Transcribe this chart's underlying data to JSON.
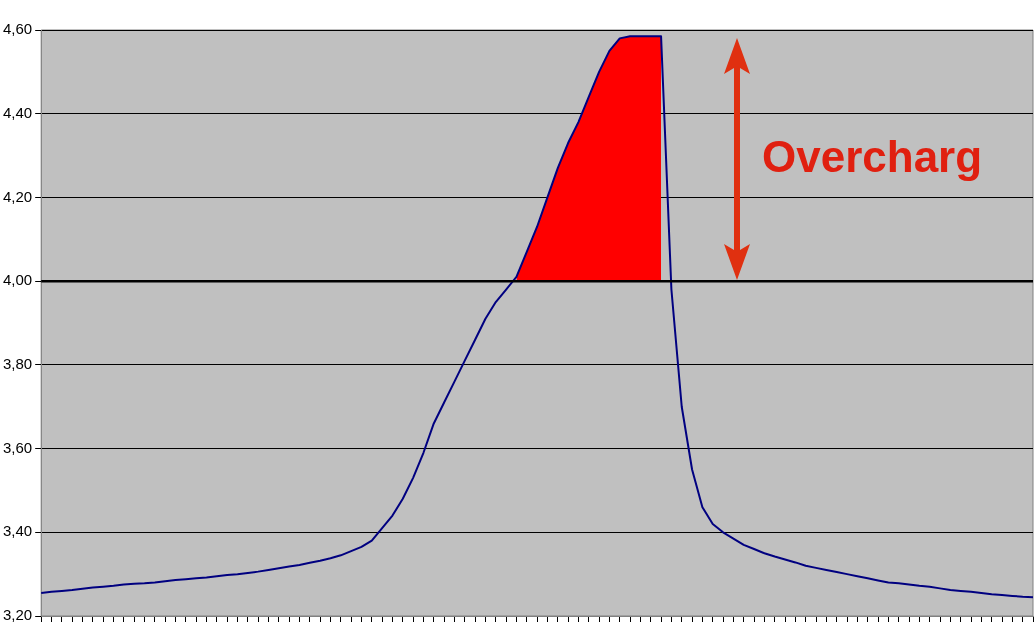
{
  "chart_data": {
    "type": "line",
    "categories": [
      null,
      null,
      null,
      null,
      null,
      null,
      null,
      null,
      null,
      null,
      null,
      null,
      null,
      null,
      null,
      null,
      null,
      null,
      null,
      null,
      null,
      null,
      null,
      null,
      null,
      null,
      null,
      null,
      null,
      null,
      null,
      null,
      null,
      null,
      null,
      null,
      null,
      null,
      null,
      null,
      null,
      null,
      null,
      null,
      null,
      null,
      null,
      null,
      null,
      null,
      null,
      null,
      null,
      null,
      null,
      null,
      null,
      null,
      null,
      null,
      null,
      null,
      null,
      null,
      null,
      null,
      null,
      null,
      null,
      null,
      null,
      null,
      null,
      null,
      null,
      null,
      null,
      null,
      null,
      null,
      null,
      null,
      null,
      null,
      null,
      null,
      null,
      null,
      null,
      null,
      null,
      null,
      null,
      null,
      null,
      null,
      null
    ],
    "series": [
      {
        "type": "line",
        "color": "#000080",
        "values": [
          3.255,
          3.258,
          3.26,
          3.262,
          3.265,
          3.268,
          3.27,
          3.272,
          3.275,
          3.277,
          3.278,
          3.28,
          3.283,
          3.286,
          3.288,
          3.29,
          3.292,
          3.295,
          3.298,
          3.3,
          3.303,
          3.306,
          3.31,
          3.314,
          3.318,
          3.322,
          3.327,
          3.332,
          3.338,
          3.345,
          3.355,
          3.365,
          3.38,
          3.41,
          3.44,
          3.48,
          3.53,
          3.59,
          3.66,
          3.71,
          3.76,
          3.81,
          3.86,
          3.91,
          3.95,
          3.98,
          4.01,
          4.07,
          4.13,
          4.2,
          4.27,
          4.33,
          4.38,
          4.44,
          4.5,
          4.55,
          4.58,
          4.585,
          4.585,
          4.585,
          4.585,
          3.98,
          3.7,
          3.55,
          3.46,
          3.42,
          3.4,
          3.385,
          3.37,
          3.36,
          3.35,
          3.342,
          3.335,
          3.328,
          3.32,
          3.315,
          3.31,
          3.305,
          3.3,
          3.295,
          3.29,
          3.285,
          3.28,
          3.278,
          3.275,
          3.272,
          3.27,
          3.266,
          3.262,
          3.26,
          3.258,
          3.255,
          3.252,
          3.25,
          3.248,
          3.246,
          3.245
        ]
      },
      {
        "type": "area",
        "color": "#ff0000",
        "values": [
          null,
          null,
          null,
          null,
          null,
          null,
          null,
          null,
          null,
          null,
          null,
          null,
          null,
          null,
          null,
          null,
          null,
          null,
          null,
          null,
          null,
          null,
          null,
          null,
          null,
          null,
          null,
          null,
          null,
          null,
          null,
          null,
          null,
          null,
          null,
          null,
          null,
          null,
          null,
          null,
          null,
          null,
          null,
          null,
          null,
          null,
          4.01,
          4.07,
          4.13,
          4.2,
          4.27,
          4.33,
          4.38,
          4.44,
          4.5,
          4.55,
          4.58,
          4.585,
          4.585,
          4.585,
          4.585,
          null,
          null,
          null,
          null,
          null,
          null,
          null,
          null,
          null,
          null,
          null,
          null,
          null,
          null,
          null,
          null,
          null,
          null,
          null,
          null,
          null,
          null,
          null,
          null,
          null,
          null,
          null,
          null,
          null,
          null,
          null,
          null,
          null,
          null,
          null,
          null
        ],
        "name": null
      }
    ],
    "ref_lines": [
      {
        "axis": "y",
        "value": 4.0,
        "color": "#000000"
      }
    ],
    "ylim": [
      3.2,
      4.6
    ],
    "yticks": [
      {
        "value": 3.2,
        "label": "3,20"
      },
      {
        "value": 3.4,
        "label": "3,40"
      },
      {
        "value": 3.6,
        "label": "3,60"
      },
      {
        "value": 3.8,
        "label": "3,80"
      },
      {
        "value": 4.0,
        "label": "4,00"
      },
      {
        "value": 4.2,
        "label": "4,20"
      },
      {
        "value": 4.4,
        "label": "4,40"
      },
      {
        "value": 4.6,
        "label": "4,60"
      }
    ],
    "grid": "y",
    "legend": false,
    "tick_labels": "y",
    "marker": "none",
    "line_style": "solid",
    "annotations": [
      "Overcharg"
    ]
  }
}
